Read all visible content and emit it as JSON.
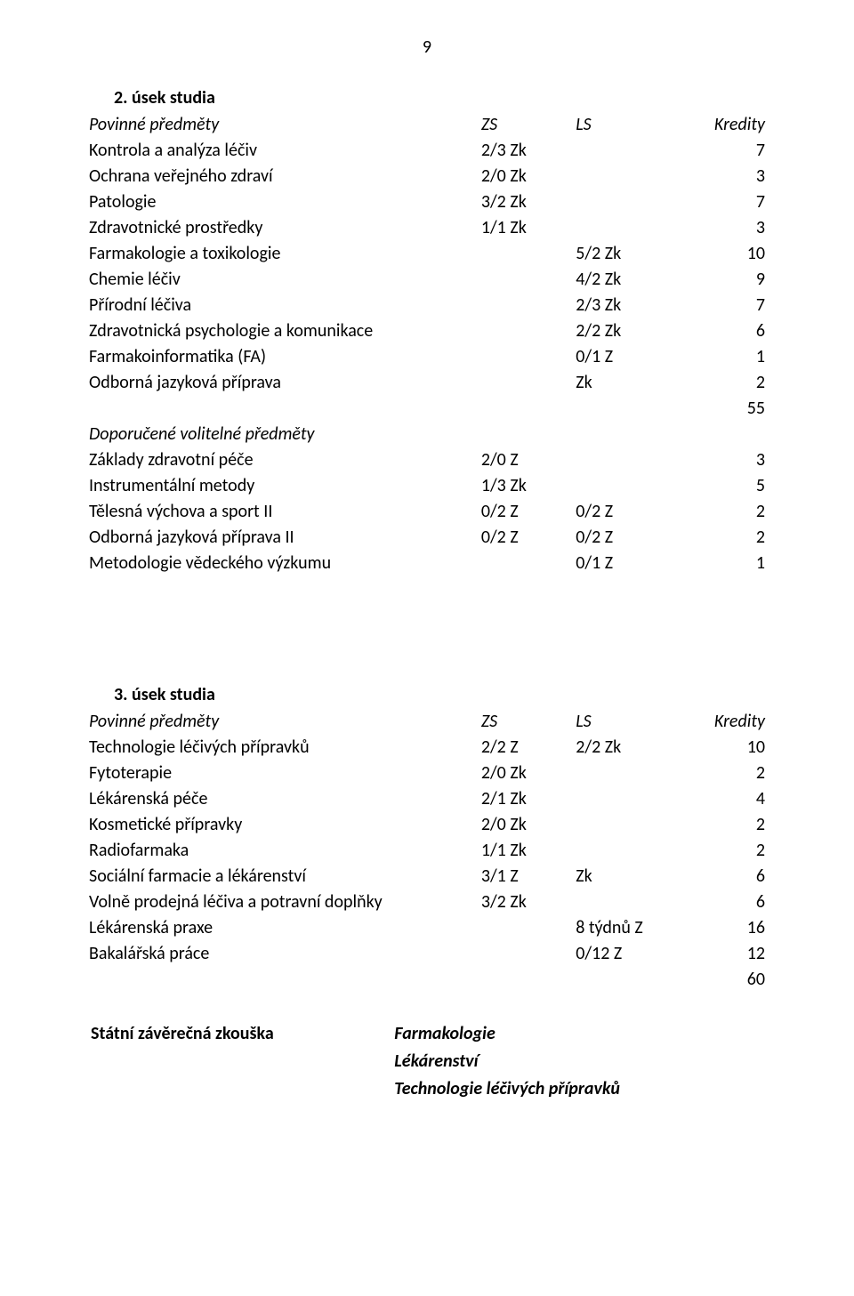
{
  "page_number": "9",
  "sections": [
    {
      "heading": "2.  úsek studia",
      "groups": [
        {
          "group_label": "Povinné předměty",
          "header": {
            "zs": "ZS",
            "ls": "LS",
            "kr": "Kredity"
          },
          "rows": [
            {
              "name": "Kontrola a analýza léčiv",
              "zs": "2/3 Zk",
              "ls": "",
              "kr": "7"
            },
            {
              "name": "Ochrana veřejného zdraví",
              "zs": "2/0 Zk",
              "ls": "",
              "kr": "3"
            },
            {
              "name": "Patologie",
              "zs": "3/2 Zk",
              "ls": "",
              "kr": "7"
            },
            {
              "name": "Zdravotnické prostředky",
              "zs": "1/1 Zk",
              "ls": "",
              "kr": "3"
            },
            {
              "name": "Farmakologie a toxikologie",
              "zs": "",
              "ls": "5/2 Zk",
              "kr": "10"
            },
            {
              "name": "Chemie léčiv",
              "zs": "",
              "ls": "4/2 Zk",
              "kr": "9"
            },
            {
              "name": "Přírodní léčiva",
              "zs": "",
              "ls": "2/3 Zk",
              "kr": "7"
            },
            {
              "name": "Zdravotnická psychologie a komunikace",
              "zs": "",
              "ls": "2/2 Zk",
              "kr": "6"
            },
            {
              "name": "Farmakoinformatika   (FA)",
              "zs": "",
              "ls": "0/1 Z",
              "kr": "1"
            },
            {
              "name": "Odborná jazyková příprava",
              "zs": "",
              "ls": "Zk",
              "kr": "2"
            },
            {
              "name": "",
              "zs": "",
              "ls": "",
              "kr": "55"
            }
          ]
        },
        {
          "group_label": "Doporučené volitelné předměty",
          "rows": [
            {
              "name": "Základy zdravotní péče",
              "zs": "2/0 Z",
              "ls": "",
              "kr": "3"
            },
            {
              "name": "Instrumentální metody",
              "zs": "1/3 Zk",
              "ls": "",
              "kr": "5"
            },
            {
              "name": "Tělesná výchova a sport II",
              "zs": "0/2 Z",
              "ls": "0/2 Z",
              "kr": "2"
            },
            {
              "name": "Odborná jazyková příprava II",
              "zs": "0/2 Z",
              "ls": "0/2 Z",
              "kr": "2"
            },
            {
              "name": "Metodologie vědeckého výzkumu",
              "zs": "",
              "ls": "0/1 Z",
              "kr": "1"
            }
          ]
        }
      ]
    },
    {
      "heading": "3.  úsek studia",
      "groups": [
        {
          "group_label": "Povinné předměty",
          "header": {
            "zs": "ZS",
            "ls": "LS",
            "kr": "Kredity"
          },
          "rows": [
            {
              "name": "Technologie léčivých přípravků",
              "zs": "2/2 Z",
              "ls": "2/2 Zk",
              "kr": "10"
            },
            {
              "name": "Fytoterapie",
              "zs": "2/0 Zk",
              "ls": "",
              "kr": "2"
            },
            {
              "name": "Lékárenská péče",
              "zs": "2/1 Zk",
              "ls": "",
              "kr": "4"
            },
            {
              "name": "Kosmetické přípravky",
              "zs": "2/0 Zk",
              "ls": "",
              "kr": "2"
            },
            {
              "name": "Radiofarmaka",
              "zs": "1/1 Zk",
              "ls": "",
              "kr": "2"
            },
            {
              "name": "Sociální farmacie a lékárenství",
              "zs": "3/1 Z",
              "ls": "Zk",
              "kr": "6"
            },
            {
              "name": "Volně prodejná léčiva a potravní doplňky",
              "zs": "3/2 Zk",
              "ls": "",
              "kr": "6"
            },
            {
              "name": "Lékárenská praxe",
              "zs": "",
              "ls": "8 týdnů Z",
              "kr": "16"
            },
            {
              "name": "Bakalářská práce",
              "zs": "",
              "ls": "0/12 Z",
              "kr": "12"
            },
            {
              "name": "",
              "zs": "",
              "ls": "",
              "kr": "60"
            }
          ]
        }
      ]
    }
  ],
  "final_exam": {
    "label": "Státní závěrečná zkouška",
    "items": [
      "Farmakologie",
      "Lékárenství",
      "Technologie léčivých přípravků"
    ]
  }
}
